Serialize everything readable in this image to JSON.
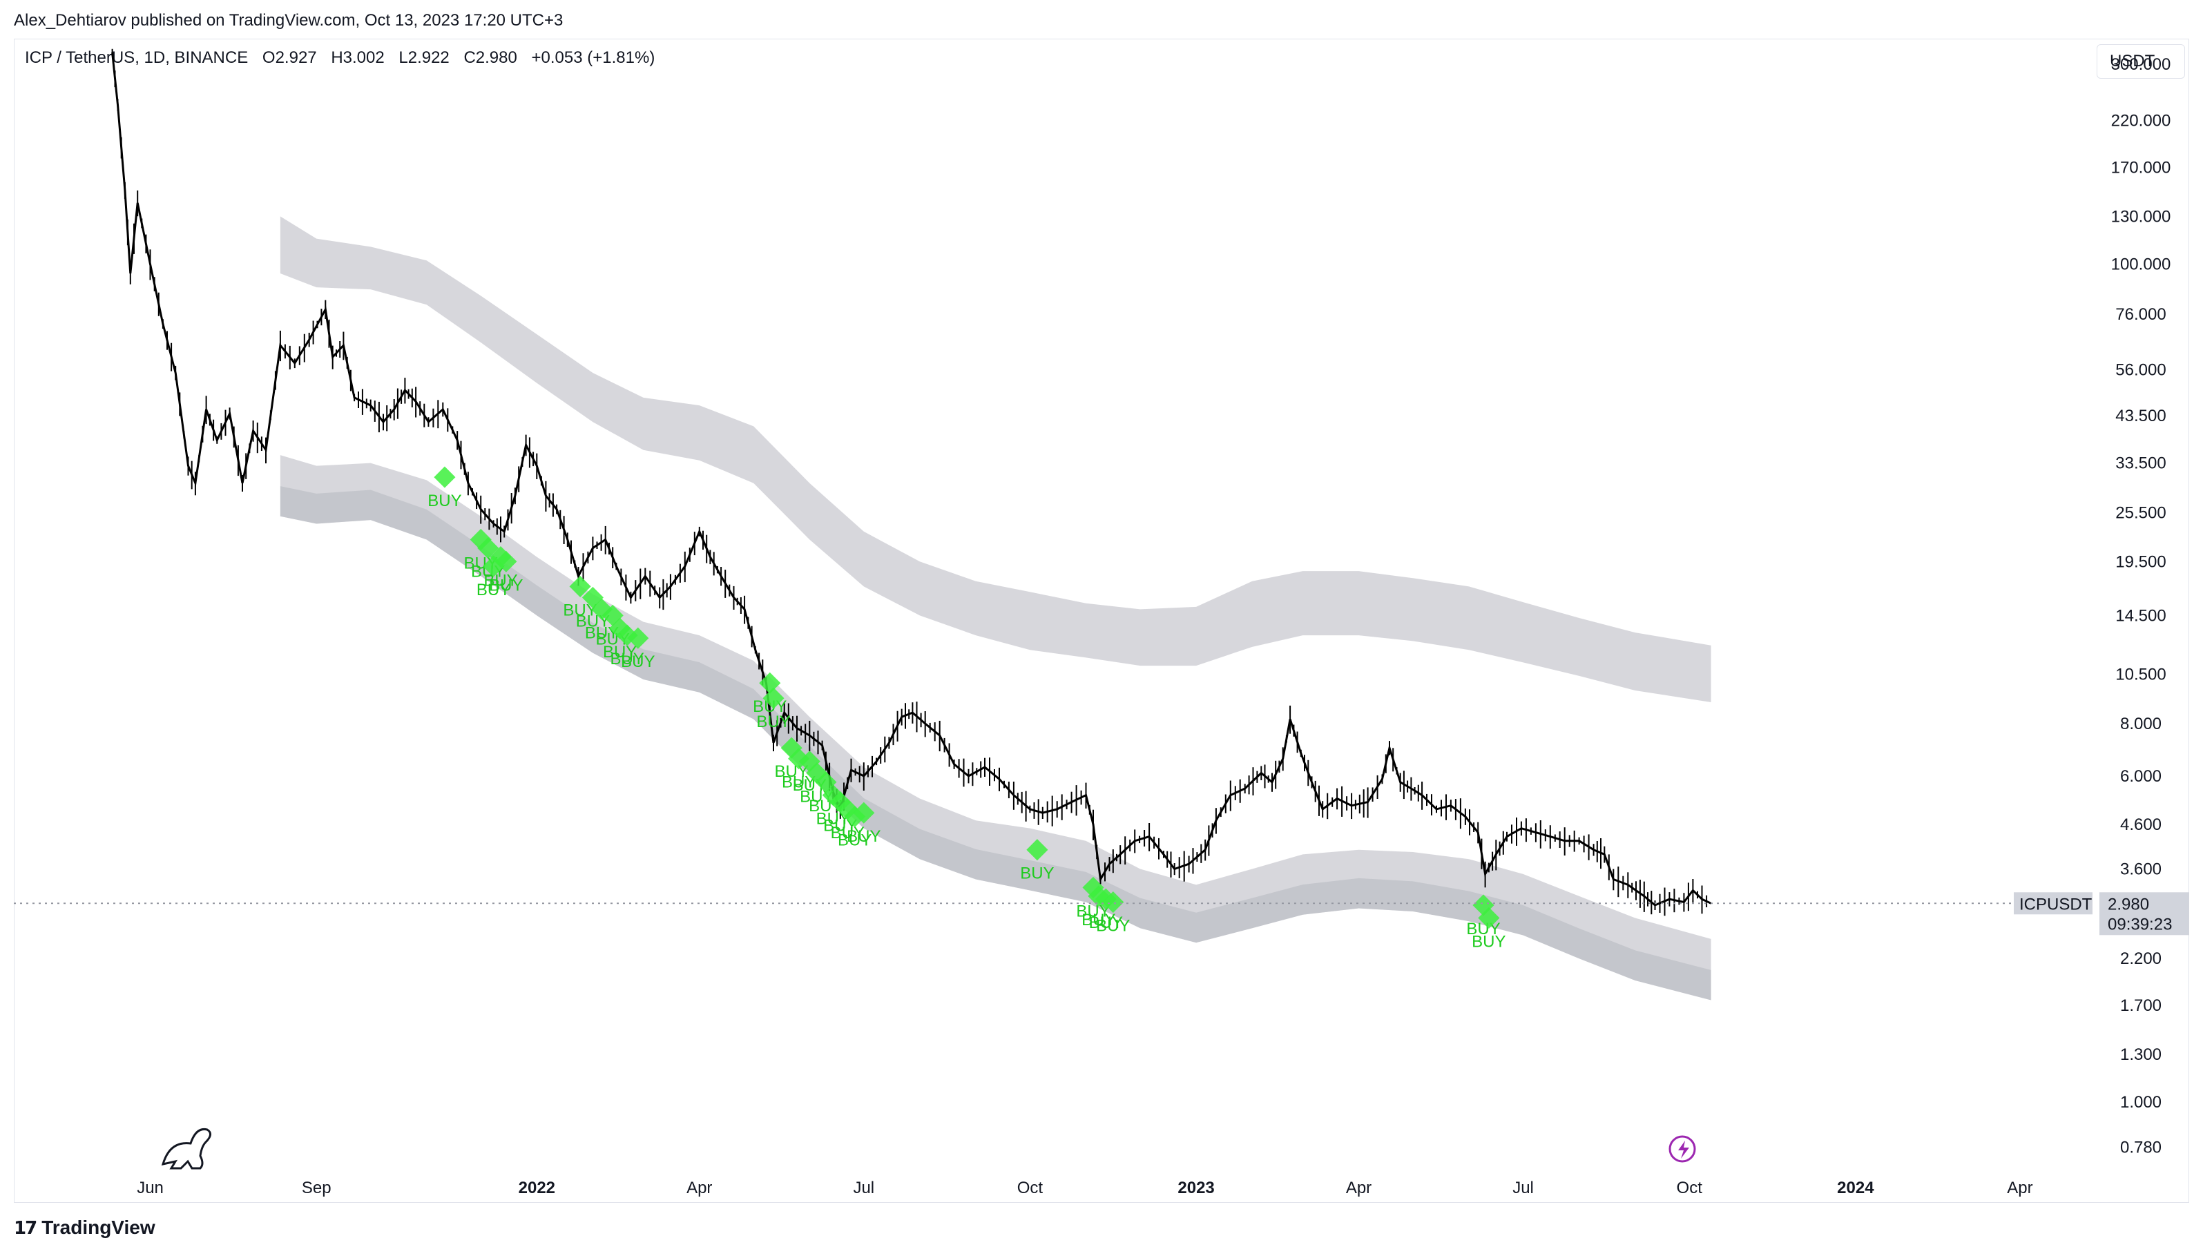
{
  "publisher": "Alex_Dehtiarov published on TradingView.com, Oct 13, 2023 17:20 UTC+3",
  "legend": {
    "symbol": "ICP / TetherUS, 1D, BINANCE",
    "open": "O2.927",
    "high": "H3.002",
    "low": "L2.922",
    "close": "C2.980",
    "change": "+0.053 (+1.81%)"
  },
  "currency": "USDT",
  "footer": {
    "brand": "TradingView"
  },
  "colors": {
    "candle": "#000000",
    "band": "#c9cad0",
    "buy": "#3cf03c",
    "buy_text": "#1ecb1e",
    "last_price_bg": "#d1d4dc",
    "dotted_line": "#9598a1",
    "timer_icon": "#9c27b0"
  },
  "chart_data": {
    "type": "line",
    "title": "ICP / TetherUS, 1D, BINANCE",
    "y_scale": "log",
    "ylim": [
      0.7,
      340
    ],
    "xlim": [
      "2021-05-10",
      "2024-05-15"
    ],
    "y_ticks": [
      "300.000",
      "220.000",
      "170.000",
      "130.000",
      "100.000",
      "76.000",
      "56.000",
      "43.500",
      "33.500",
      "25.500",
      "19.500",
      "14.500",
      "10.500",
      "8.000",
      "6.000",
      "4.600",
      "3.600",
      "2.200",
      "1.700",
      "1.300",
      "1.000",
      "0.780"
    ],
    "y_tick_values": [
      300,
      220,
      170,
      130,
      100,
      76,
      56,
      43.5,
      33.5,
      25.5,
      19.5,
      14.5,
      10.5,
      8,
      6,
      4.6,
      3.6,
      2.2,
      1.7,
      1.3,
      1.0,
      0.78
    ],
    "x_ticks": [
      {
        "label": "Jun",
        "date": "2021-06-01",
        "bold": false
      },
      {
        "label": "Sep",
        "date": "2021-09-01",
        "bold": false
      },
      {
        "label": "2022",
        "date": "2022-01-01",
        "bold": true
      },
      {
        "label": "Apr",
        "date": "2022-04-01",
        "bold": false
      },
      {
        "label": "Jul",
        "date": "2022-07-01",
        "bold": false
      },
      {
        "label": "Oct",
        "date": "2022-10-01",
        "bold": false
      },
      {
        "label": "2023",
        "date": "2023-01-01",
        "bold": true
      },
      {
        "label": "Apr",
        "date": "2023-04-01",
        "bold": false
      },
      {
        "label": "Jul",
        "date": "2023-07-01",
        "bold": false
      },
      {
        "label": "Oct",
        "date": "2023-10-01",
        "bold": false
      },
      {
        "label": "2024",
        "date": "2024-01-01",
        "bold": true
      },
      {
        "label": "Apr",
        "date": "2024-04-01",
        "bold": false
      }
    ],
    "series": [
      {
        "type": "candlestick-trace",
        "points": [
          [
            "2021-05-11",
            320
          ],
          [
            "2021-05-14",
            240
          ],
          [
            "2021-05-18",
            150
          ],
          [
            "2021-05-21",
            95
          ],
          [
            "2021-05-25",
            140
          ],
          [
            "2021-06-01",
            100
          ],
          [
            "2021-06-08",
            72
          ],
          [
            "2021-06-15",
            55
          ],
          [
            "2021-06-22",
            33
          ],
          [
            "2021-06-26",
            30
          ],
          [
            "2021-07-02",
            45
          ],
          [
            "2021-07-08",
            38
          ],
          [
            "2021-07-15",
            44
          ],
          [
            "2021-07-22",
            30
          ],
          [
            "2021-07-28",
            40
          ],
          [
            "2021-08-04",
            36
          ],
          [
            "2021-08-12",
            64
          ],
          [
            "2021-08-20",
            58
          ],
          [
            "2021-08-28",
            66
          ],
          [
            "2021-09-06",
            78
          ],
          [
            "2021-09-10",
            60
          ],
          [
            "2021-09-16",
            64
          ],
          [
            "2021-09-22",
            48
          ],
          [
            "2021-10-01",
            46
          ],
          [
            "2021-10-08",
            42
          ],
          [
            "2021-10-14",
            45
          ],
          [
            "2021-10-20",
            50
          ],
          [
            "2021-10-26",
            47
          ],
          [
            "2021-11-02",
            42
          ],
          [
            "2021-11-10",
            45
          ],
          [
            "2021-11-18",
            38
          ],
          [
            "2021-11-24",
            30
          ],
          [
            "2021-12-01",
            26
          ],
          [
            "2021-12-08",
            24
          ],
          [
            "2021-12-14",
            23
          ],
          [
            "2021-12-20",
            28
          ],
          [
            "2021-12-26",
            37
          ],
          [
            "2022-01-01",
            33
          ],
          [
            "2022-01-06",
            28
          ],
          [
            "2022-01-12",
            26
          ],
          [
            "2022-01-18",
            22
          ],
          [
            "2022-01-24",
            18
          ],
          [
            "2022-02-01",
            21
          ],
          [
            "2022-02-08",
            22
          ],
          [
            "2022-02-14",
            19
          ],
          [
            "2022-02-22",
            16
          ],
          [
            "2022-03-02",
            18
          ],
          [
            "2022-03-10",
            16
          ],
          [
            "2022-03-16",
            17
          ],
          [
            "2022-03-24",
            19
          ],
          [
            "2022-04-01",
            23
          ],
          [
            "2022-04-07",
            20
          ],
          [
            "2022-04-13",
            18
          ],
          [
            "2022-04-20",
            16
          ],
          [
            "2022-04-26",
            15
          ],
          [
            "2022-05-02",
            12
          ],
          [
            "2022-05-08",
            10
          ],
          [
            "2022-05-12",
            7.2
          ],
          [
            "2022-05-18",
            8.5
          ],
          [
            "2022-05-25",
            7.8
          ],
          [
            "2022-06-01",
            7.5
          ],
          [
            "2022-06-08",
            7.1
          ],
          [
            "2022-06-14",
            5.5
          ],
          [
            "2022-06-18",
            5.0
          ],
          [
            "2022-06-24",
            6.2
          ],
          [
            "2022-07-01",
            6.0
          ],
          [
            "2022-07-08",
            6.5
          ],
          [
            "2022-07-15",
            7.2
          ],
          [
            "2022-07-22",
            8.3
          ],
          [
            "2022-07-28",
            8.5
          ],
          [
            "2022-08-04",
            8.0
          ],
          [
            "2022-08-12",
            7.5
          ],
          [
            "2022-08-20",
            6.4
          ],
          [
            "2022-08-28",
            6.0
          ],
          [
            "2022-09-06",
            6.3
          ],
          [
            "2022-09-14",
            5.9
          ],
          [
            "2022-09-22",
            5.4
          ],
          [
            "2022-10-01",
            5.0
          ],
          [
            "2022-10-08",
            4.9
          ],
          [
            "2022-10-16",
            5.0
          ],
          [
            "2022-10-24",
            5.2
          ],
          [
            "2022-11-01",
            5.4
          ],
          [
            "2022-11-05",
            4.6
          ],
          [
            "2022-11-09",
            3.4
          ],
          [
            "2022-11-14",
            3.7
          ],
          [
            "2022-11-20",
            3.9
          ],
          [
            "2022-11-28",
            4.2
          ],
          [
            "2022-12-06",
            4.3
          ],
          [
            "2022-12-14",
            3.9
          ],
          [
            "2022-12-20",
            3.6
          ],
          [
            "2022-12-28",
            3.7
          ],
          [
            "2023-01-06",
            4.0
          ],
          [
            "2023-01-12",
            4.7
          ],
          [
            "2023-01-20",
            5.4
          ],
          [
            "2023-01-28",
            5.6
          ],
          [
            "2023-02-06",
            6.1
          ],
          [
            "2023-02-12",
            5.8
          ],
          [
            "2023-02-18",
            6.6
          ],
          [
            "2023-02-22",
            8.2
          ],
          [
            "2023-02-28",
            6.8
          ],
          [
            "2023-03-06",
            5.8
          ],
          [
            "2023-03-12",
            5.0
          ],
          [
            "2023-03-20",
            5.3
          ],
          [
            "2023-03-28",
            5.1
          ],
          [
            "2023-04-06",
            5.2
          ],
          [
            "2023-04-14",
            5.9
          ],
          [
            "2023-04-18",
            7.0
          ],
          [
            "2023-04-24",
            5.8
          ],
          [
            "2023-04-30",
            5.6
          ],
          [
            "2023-05-06",
            5.4
          ],
          [
            "2023-05-14",
            5.0
          ],
          [
            "2023-05-22",
            5.1
          ],
          [
            "2023-05-30",
            4.8
          ],
          [
            "2023-06-06",
            4.4
          ],
          [
            "2023-06-10",
            3.5
          ],
          [
            "2023-06-16",
            3.9
          ],
          [
            "2023-06-22",
            4.3
          ],
          [
            "2023-06-30",
            4.5
          ],
          [
            "2023-07-08",
            4.4
          ],
          [
            "2023-07-16",
            4.3
          ],
          [
            "2023-07-24",
            4.2
          ],
          [
            "2023-08-01",
            4.2
          ],
          [
            "2023-08-09",
            4.0
          ],
          [
            "2023-08-15",
            3.9
          ],
          [
            "2023-08-20",
            3.4
          ],
          [
            "2023-08-28",
            3.3
          ],
          [
            "2023-09-06",
            3.1
          ],
          [
            "2023-09-12",
            2.95
          ],
          [
            "2023-09-20",
            3.05
          ],
          [
            "2023-09-28",
            3.0
          ],
          [
            "2023-10-03",
            3.2
          ],
          [
            "2023-10-08",
            3.05
          ],
          [
            "2023-10-13",
            2.98
          ]
        ]
      }
    ],
    "bands": [
      {
        "name_hint": "upper",
        "points": [
          [
            "2021-08-12",
            95,
            130
          ],
          [
            "2021-09-01",
            88,
            115
          ],
          [
            "2021-10-01",
            87,
            110
          ],
          [
            "2021-11-01",
            80,
            102
          ],
          [
            "2021-12-01",
            65,
            84
          ],
          [
            "2022-01-01",
            52,
            68
          ],
          [
            "2022-02-01",
            42,
            55
          ],
          [
            "2022-03-01",
            36,
            48
          ],
          [
            "2022-04-01",
            34,
            46
          ],
          [
            "2022-05-01",
            30,
            41
          ],
          [
            "2022-06-01",
            22,
            30
          ],
          [
            "2022-07-01",
            17,
            23
          ],
          [
            "2022-08-01",
            14.5,
            19.5
          ],
          [
            "2022-09-01",
            13.0,
            17.5
          ],
          [
            "2022-10-01",
            12.0,
            16.5
          ],
          [
            "2022-11-01",
            11.5,
            15.5
          ],
          [
            "2022-12-01",
            11.0,
            15.0
          ],
          [
            "2023-01-01",
            11.0,
            15.2
          ],
          [
            "2023-02-01",
            12.2,
            17.5
          ],
          [
            "2023-03-01",
            13.0,
            18.5
          ],
          [
            "2023-04-01",
            13.0,
            18.5
          ],
          [
            "2023-05-01",
            12.6,
            17.8
          ],
          [
            "2023-06-01",
            12.0,
            17.0
          ],
          [
            "2023-07-01",
            11.2,
            15.6
          ],
          [
            "2023-08-01",
            10.4,
            14.3
          ],
          [
            "2023-09-01",
            9.6,
            13.2
          ],
          [
            "2023-10-13",
            9.0,
            12.3
          ]
        ]
      },
      {
        "name_hint": "lower-outer",
        "points": [
          [
            "2021-08-12",
            25.0,
            35.0
          ],
          [
            "2021-09-01",
            24.0,
            33.0
          ],
          [
            "2021-10-01",
            24.5,
            33.5
          ],
          [
            "2021-11-01",
            22.0,
            30.5
          ],
          [
            "2021-12-01",
            18.0,
            25.0
          ],
          [
            "2022-01-01",
            14.5,
            20.0
          ],
          [
            "2022-02-01",
            11.8,
            16.3
          ],
          [
            "2022-03-01",
            10.2,
            14.0
          ],
          [
            "2022-04-01",
            9.5,
            13.0
          ],
          [
            "2022-05-01",
            8.2,
            11.3
          ],
          [
            "2022-06-01",
            6.0,
            8.3
          ],
          [
            "2022-07-01",
            4.5,
            6.3
          ],
          [
            "2022-08-01",
            3.8,
            5.3
          ],
          [
            "2022-09-01",
            3.4,
            4.7
          ],
          [
            "2022-10-01",
            3.2,
            4.5
          ],
          [
            "2022-11-01",
            3.0,
            4.2
          ],
          [
            "2022-12-01",
            2.6,
            3.6
          ],
          [
            "2023-01-01",
            2.4,
            3.3
          ],
          [
            "2023-02-01",
            2.6,
            3.6
          ],
          [
            "2023-03-01",
            2.8,
            3.9
          ],
          [
            "2023-04-01",
            2.9,
            4.0
          ],
          [
            "2023-05-01",
            2.85,
            3.95
          ],
          [
            "2023-06-01",
            2.7,
            3.8
          ],
          [
            "2023-07-01",
            2.5,
            3.5
          ],
          [
            "2023-08-01",
            2.2,
            3.1
          ],
          [
            "2023-09-01",
            1.95,
            2.75
          ],
          [
            "2023-10-13",
            1.75,
            2.45
          ]
        ]
      }
    ],
    "buy_signals": [
      [
        "2021-11-11",
        31
      ],
      [
        "2021-12-01",
        22
      ],
      [
        "2021-12-05",
        21
      ],
      [
        "2021-12-08",
        19
      ],
      [
        "2021-12-12",
        20
      ],
      [
        "2021-12-15",
        19.5
      ],
      [
        "2022-01-25",
        17
      ],
      [
        "2022-02-01",
        16
      ],
      [
        "2022-02-06",
        15
      ],
      [
        "2022-02-12",
        14.5
      ],
      [
        "2022-02-16",
        13.5
      ],
      [
        "2022-02-20",
        13
      ],
      [
        "2022-02-26",
        12.8
      ],
      [
        "2022-05-10",
        10
      ],
      [
        "2022-05-12",
        9.2
      ],
      [
        "2022-05-22",
        7.0
      ],
      [
        "2022-05-26",
        6.6
      ],
      [
        "2022-06-01",
        6.5
      ],
      [
        "2022-06-05",
        6.1
      ],
      [
        "2022-06-10",
        5.8
      ],
      [
        "2022-06-14",
        5.4
      ],
      [
        "2022-06-18",
        5.2
      ],
      [
        "2022-06-22",
        5.0
      ],
      [
        "2022-06-26",
        4.8
      ],
      [
        "2022-07-01",
        4.9
      ],
      [
        "2022-10-05",
        4.0
      ],
      [
        "2022-11-05",
        3.25
      ],
      [
        "2022-11-08",
        3.1
      ],
      [
        "2022-11-12",
        3.05
      ],
      [
        "2022-11-16",
        3.0
      ],
      [
        "2023-06-09",
        2.95
      ],
      [
        "2023-06-12",
        2.75
      ]
    ],
    "last_price": {
      "symbol": "ICPUSDT",
      "value": "2.980",
      "countdown": "09:39:23",
      "y": 2.98
    }
  }
}
